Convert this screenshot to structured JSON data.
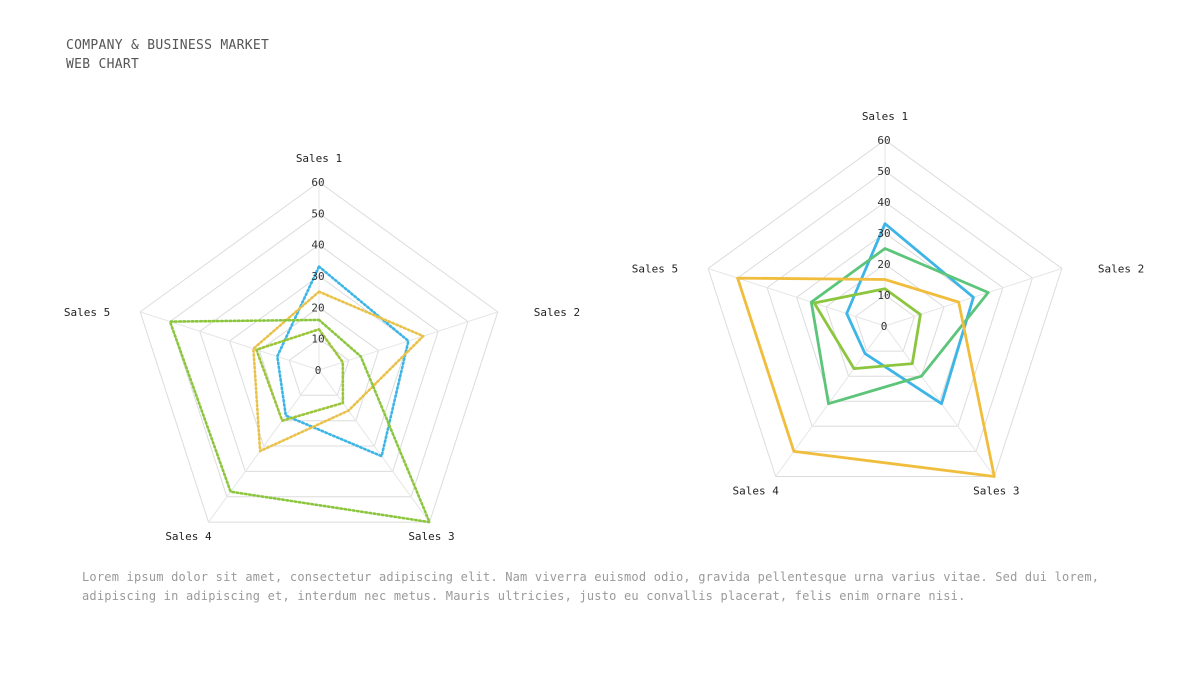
{
  "header": {
    "line1": "COMPANY & BUSINESS MARKET",
    "line2": "WEB CHART"
  },
  "description": "Lorem ipsum dolor sit amet, consectetur adipiscing elit. Nam viverra euismod odio, gravida pellentesque urna varius vitae. Sed dui lorem, adipiscing in adipiscing et, interdum nec metus. Mauris ultricies, justo eu convallis placerat, felis enim ornare nisi.",
  "chart_data": [
    {
      "type": "radar",
      "line_style": "dotted",
      "axes": [
        "Sales 1",
        "Sales 2",
        "Sales 3",
        "Sales 4",
        "Sales 5"
      ],
      "ticks": [
        0,
        10,
        20,
        30,
        40,
        50,
        60
      ],
      "range": [
        0,
        60
      ],
      "series": [
        {
          "color": "#3db5e6",
          "values": [
            33,
            30,
            34,
            18,
            14
          ]
        },
        {
          "color": "#e9c24a",
          "values": [
            25,
            35,
            16,
            32,
            22
          ]
        },
        {
          "color": "#8cc63f",
          "values": [
            16,
            14,
            60,
            48,
            50
          ]
        },
        {
          "color": "#9cc43c",
          "values": [
            13,
            8,
            13,
            20,
            21
          ]
        }
      ]
    },
    {
      "type": "radar",
      "line_style": "solid",
      "axes": [
        "Sales 1",
        "Sales 2",
        "Sales 3",
        "Sales 4",
        "Sales 5"
      ],
      "ticks": [
        0,
        10,
        20,
        30,
        40,
        50,
        60
      ],
      "range": [
        0,
        60
      ],
      "series": [
        {
          "color": "#3db5e6",
          "values": [
            33,
            30,
            31,
            11,
            13
          ]
        },
        {
          "color": "#5cc57a",
          "values": [
            25,
            35,
            20,
            31,
            25
          ]
        },
        {
          "color": "#f0bd3d",
          "values": [
            15,
            25,
            60,
            50,
            50
          ]
        },
        {
          "color": "#8cc63f",
          "values": [
            12,
            12,
            15,
            17,
            24
          ]
        }
      ]
    }
  ]
}
